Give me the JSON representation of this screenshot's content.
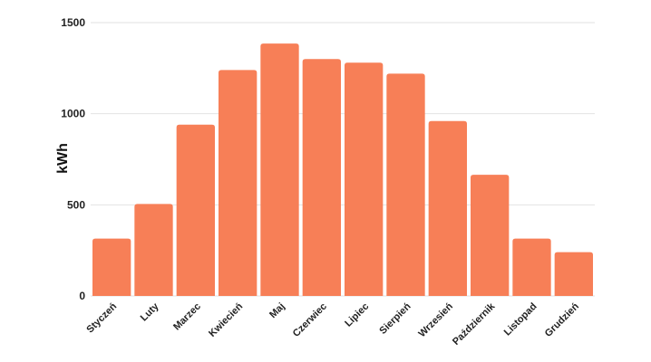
{
  "chart_data": {
    "type": "bar",
    "categories": [
      "Styczeń",
      "Luty",
      "Marzec",
      "Kwiecień",
      "Maj",
      "Czerwiec",
      "Lipiec",
      "Sierpień",
      "Wrzesień",
      "Październik",
      "Listopad",
      "Grudzień"
    ],
    "values": [
      315,
      505,
      940,
      1240,
      1385,
      1300,
      1280,
      1220,
      960,
      665,
      315,
      240
    ],
    "ylabel": "kWh",
    "xlabel": "",
    "ylim": [
      0,
      1500
    ],
    "yticks": [
      0,
      500,
      1000,
      1500
    ],
    "grid": true,
    "colors": {
      "bar": "#F77F57",
      "grid": "#E2E2E2"
    }
  }
}
